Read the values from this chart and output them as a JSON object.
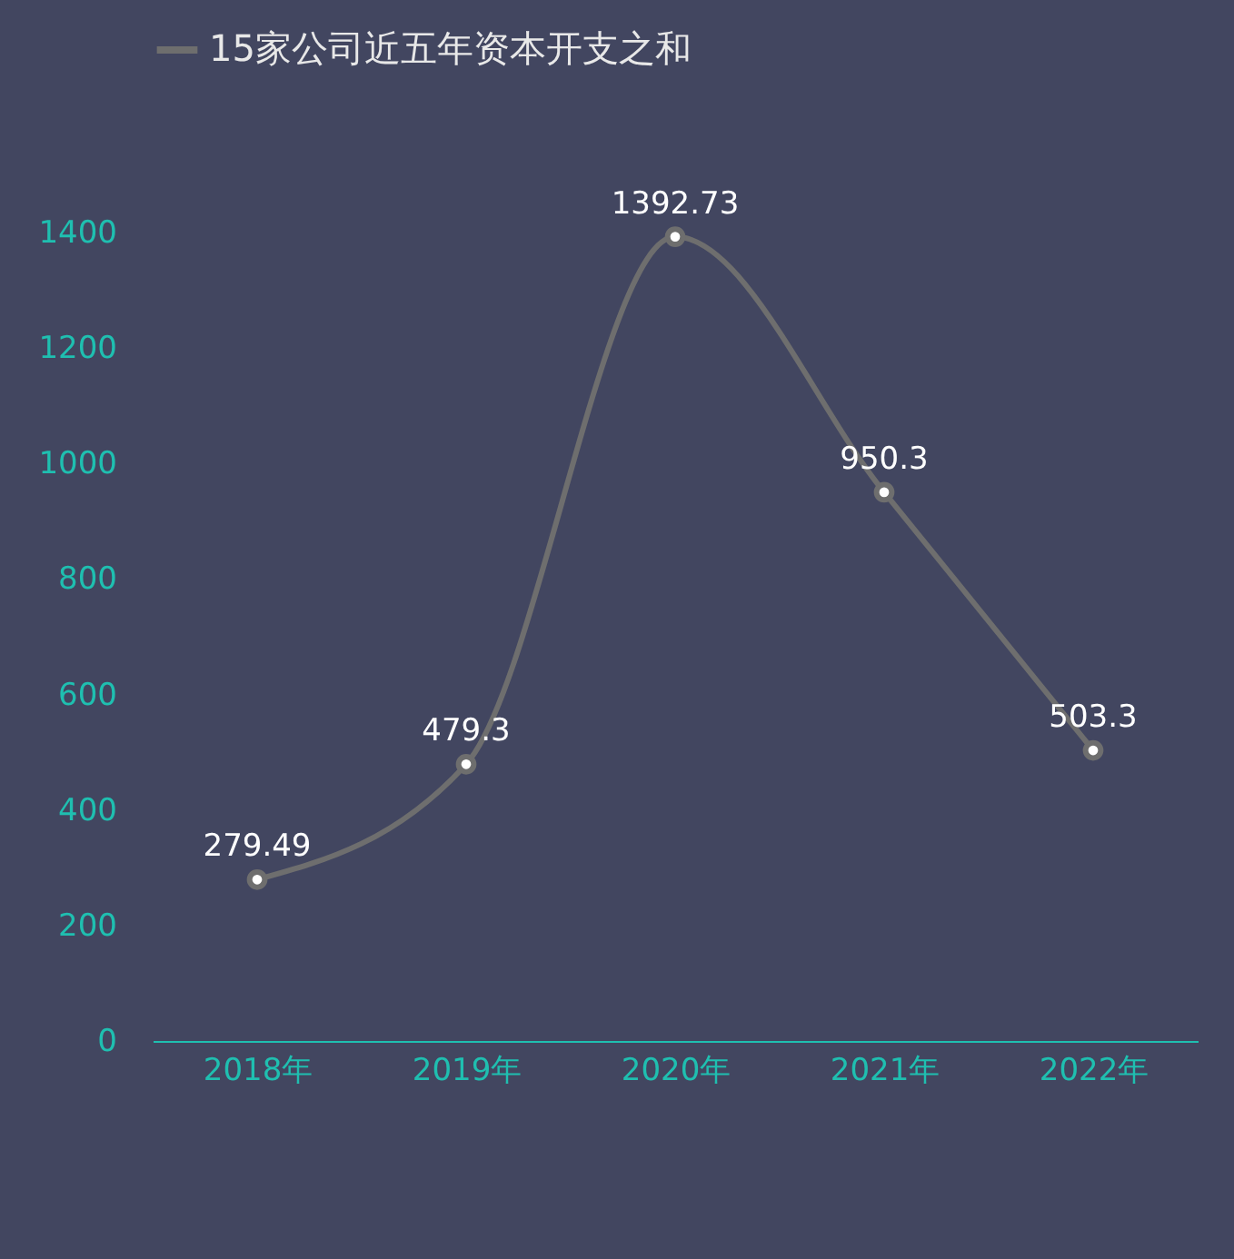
{
  "chart_data": {
    "type": "line",
    "categories": [
      "2018年",
      "2019年",
      "2020年",
      "2021年",
      "2022年"
    ],
    "series": [
      {
        "name": "15家公司近五年资本开支之和",
        "color": "#6e6e6e",
        "values": [
          279.49,
          479.3,
          1392.73,
          950.3,
          503.3
        ]
      }
    ],
    "ylim": [
      0,
      1400
    ],
    "yticks": [
      0,
      200,
      400,
      600,
      800,
      1000,
      1200,
      1400
    ],
    "grid": false,
    "legend": "top",
    "marker": "circle",
    "data_labels": true
  }
}
